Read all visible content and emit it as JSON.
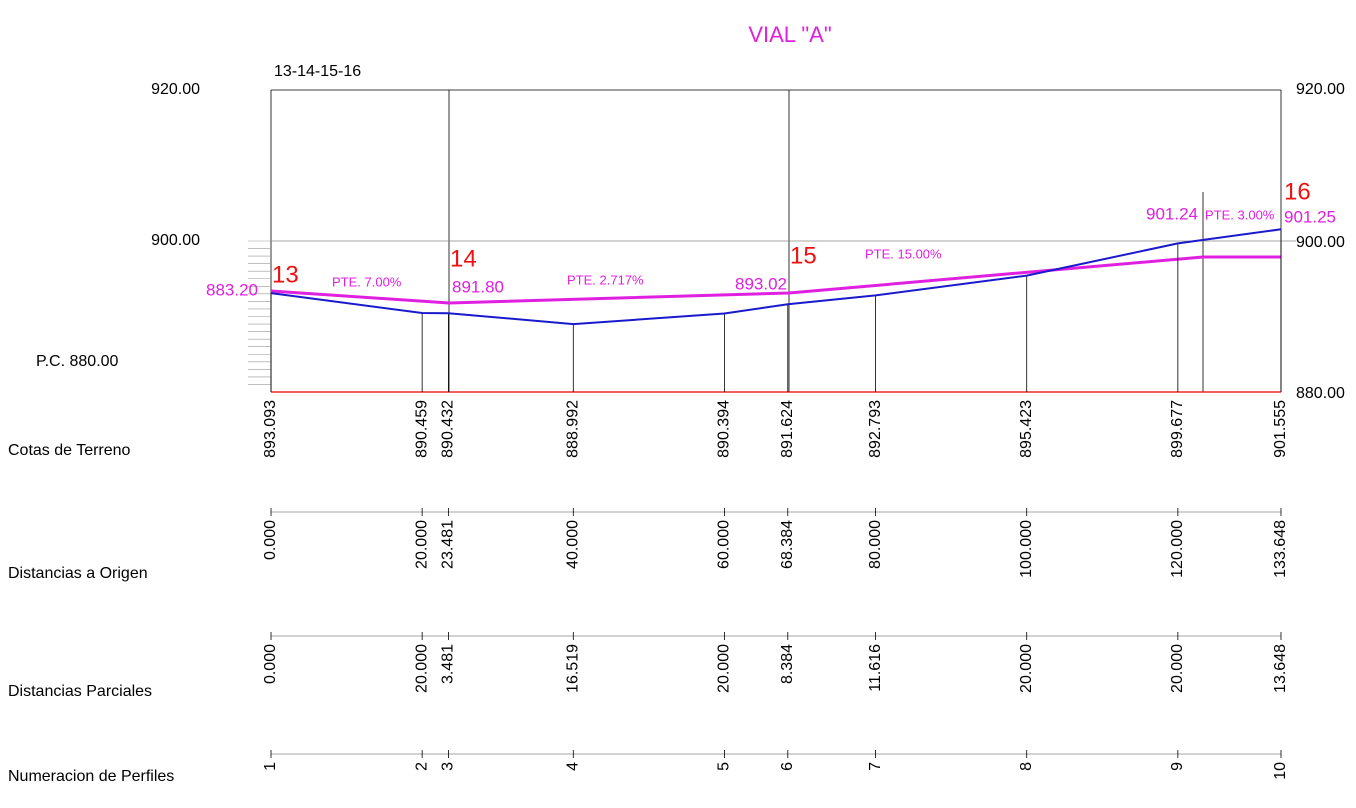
{
  "title": "VIAL \"A\"",
  "subtitle": "13-14-15-16",
  "axis_left": [
    "920.00",
    "900.00"
  ],
  "reference": "P.C. 880.00",
  "axis_right": [
    "920.00",
    "900.00",
    "880.00"
  ],
  "row_labels": [
    "Cotas de Terreno",
    "Distancias a Origen",
    "Distancias Parciales",
    "Numeracion de Perfiles"
  ],
  "profiles": [
    {
      "terreno": "893.093",
      "origen": "0.000",
      "parcial": "0.000",
      "numero": "1"
    },
    {
      "terreno": "890.459",
      "origen": "20.000",
      "parcial": "20.000",
      "numero": "2"
    },
    {
      "terreno": "890.432",
      "origen": "23.481",
      "parcial": "3.481",
      "numero": "3"
    },
    {
      "terreno": "888.992",
      "origen": "40.000",
      "parcial": "16.519",
      "numero": "4"
    },
    {
      "terreno": "890.394",
      "origen": "60.000",
      "parcial": "20.000",
      "numero": "5"
    },
    {
      "terreno": "891.624",
      "origen": "68.384",
      "parcial": "8.384",
      "numero": "6"
    },
    {
      "terreno": "892.793",
      "origen": "80.000",
      "parcial": "11.616",
      "numero": "7"
    },
    {
      "terreno": "895.423",
      "origen": "100.000",
      "parcial": "20.000",
      "numero": "8"
    },
    {
      "terreno": "899.677",
      "origen": "120.000",
      "parcial": "20.000",
      "numero": "9"
    },
    {
      "terreno": "901.555",
      "origen": "133.648",
      "parcial": "13.648",
      "numero": "10"
    }
  ],
  "points": [
    {
      "label": "13",
      "cota": "883.20"
    },
    {
      "label": "14",
      "cota": "891.80"
    },
    {
      "label": "15",
      "cota": "893.02"
    },
    {
      "label": "16",
      "cota": "901.25"
    }
  ],
  "cota_extra": "901.24",
  "grades": [
    "PTE. 7.00%",
    "PTE. 2.717%",
    "PTE. 15.00%",
    "PTE. 3.00%"
  ]
}
